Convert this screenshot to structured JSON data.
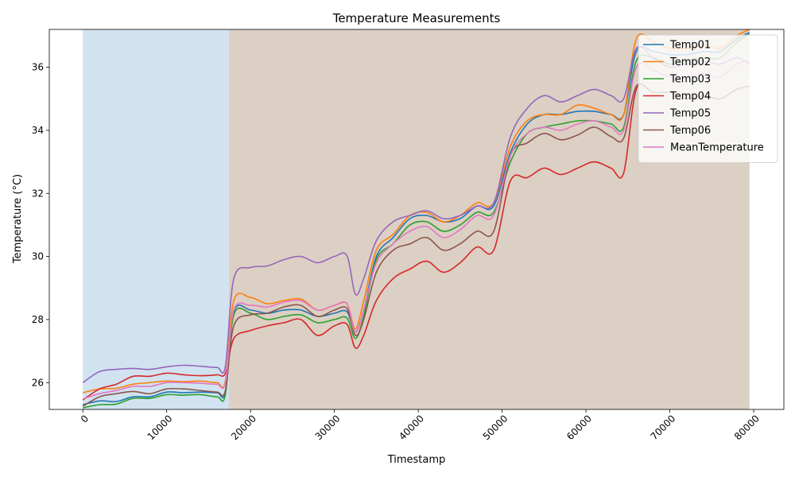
{
  "chart_data": {
    "type": "line",
    "title": "Temperature Measurements",
    "xlabel": "Timestamp",
    "ylabel": "Temperature (°C)",
    "xlim": [
      -4000,
      83600
    ],
    "ylim": [
      25.15,
      37.2
    ],
    "x_ticks": [
      0,
      10000,
      20000,
      30000,
      40000,
      50000,
      60000,
      70000,
      80000
    ],
    "y_ticks": [
      26,
      28,
      30,
      32,
      34,
      36
    ],
    "x": [
      0,
      2000,
      4000,
      6000,
      8000,
      10000,
      12000,
      14000,
      16000,
      17000,
      18000,
      20000,
      22000,
      24000,
      26000,
      28000,
      30000,
      31500,
      32500,
      33500,
      35000,
      37000,
      39000,
      41000,
      43000,
      45000,
      47000,
      49000,
      51000,
      53000,
      55000,
      57000,
      59000,
      61000,
      63000,
      64500,
      66000,
      68000,
      70000,
      72000,
      74000,
      76000,
      78000,
      79500
    ],
    "shaded_regions": [
      {
        "from": 0,
        "to": 17400,
        "color": "#d1e3f0"
      },
      {
        "from": 17400,
        "to": 79500,
        "color": "#dccfc4"
      }
    ],
    "series": [
      {
        "name": "Temp01",
        "color": "#1f77b4",
        "values": [
          25.3,
          25.42,
          25.4,
          25.55,
          25.55,
          25.7,
          25.68,
          25.7,
          25.68,
          25.72,
          28.25,
          28.3,
          28.2,
          28.3,
          28.3,
          28.1,
          28.2,
          28.25,
          27.6,
          28.3,
          30.0,
          30.6,
          31.2,
          31.3,
          31.1,
          31.2,
          31.6,
          31.6,
          33.3,
          34.2,
          34.5,
          34.5,
          34.6,
          34.6,
          34.5,
          34.5,
          36.5,
          36.5,
          36.4,
          36.4,
          36.5,
          36.5,
          36.9,
          37.1
        ]
      },
      {
        "name": "Temp02",
        "color": "#ff7f0e",
        "values": [
          25.68,
          25.8,
          25.82,
          25.95,
          26.0,
          26.05,
          26.03,
          26.05,
          26.0,
          26.05,
          28.6,
          28.7,
          28.5,
          28.6,
          28.65,
          28.3,
          28.45,
          28.5,
          27.7,
          28.6,
          30.2,
          30.7,
          31.3,
          31.4,
          31.1,
          31.3,
          31.7,
          31.7,
          33.5,
          34.3,
          34.5,
          34.5,
          34.8,
          34.7,
          34.5,
          34.5,
          36.9,
          36.8,
          36.6,
          36.6,
          36.7,
          36.6,
          37.0,
          37.2
        ]
      },
      {
        "name": "Temp03",
        "color": "#2ca02c",
        "values": [
          25.2,
          25.3,
          25.32,
          25.5,
          25.5,
          25.62,
          25.6,
          25.62,
          25.55,
          25.62,
          28.15,
          28.2,
          28.0,
          28.1,
          28.15,
          27.9,
          28.0,
          28.05,
          27.4,
          28.1,
          29.9,
          30.4,
          31.0,
          31.1,
          30.8,
          31.0,
          31.4,
          31.4,
          33.0,
          33.9,
          34.1,
          34.2,
          34.3,
          34.3,
          34.2,
          34.1,
          36.2,
          36.3,
          36.1,
          36.2,
          36.3,
          36.3,
          36.8,
          37.05
        ]
      },
      {
        "name": "Temp04",
        "color": "#d62728",
        "values": [
          25.45,
          25.8,
          25.95,
          26.2,
          26.2,
          26.3,
          26.25,
          26.22,
          26.25,
          26.3,
          27.4,
          27.65,
          27.8,
          27.9,
          28.0,
          27.5,
          27.8,
          27.85,
          27.1,
          27.5,
          28.6,
          29.3,
          29.6,
          29.85,
          29.5,
          29.8,
          30.3,
          30.2,
          32.4,
          32.5,
          32.8,
          32.6,
          32.8,
          33.0,
          32.8,
          32.65,
          35.3,
          35.2,
          35.2,
          35.0,
          35.1,
          35.0,
          35.3,
          35.4
        ]
      },
      {
        "name": "Temp05",
        "color": "#9467bd",
        "values": [
          26.0,
          26.35,
          26.42,
          26.45,
          26.42,
          26.5,
          26.55,
          26.52,
          26.48,
          26.52,
          29.3,
          29.65,
          29.7,
          29.9,
          30.0,
          29.8,
          30.0,
          30.02,
          28.8,
          29.3,
          30.5,
          31.1,
          31.3,
          31.45,
          31.2,
          31.3,
          31.6,
          31.7,
          33.8,
          34.7,
          35.1,
          34.9,
          35.1,
          35.3,
          35.1,
          35.0,
          36.6,
          36.3,
          36.0,
          36.1,
          36.2,
          36.1,
          36.3,
          36.1
        ]
      },
      {
        "name": "Temp06",
        "color": "#8c564b",
        "values": [
          25.25,
          25.55,
          25.65,
          25.72,
          25.65,
          25.8,
          25.8,
          25.75,
          25.7,
          25.75,
          27.8,
          28.15,
          28.2,
          28.4,
          28.45,
          28.1,
          28.3,
          28.35,
          27.5,
          28.0,
          29.5,
          30.2,
          30.4,
          30.6,
          30.2,
          30.4,
          30.8,
          30.8,
          33.2,
          33.6,
          33.9,
          33.7,
          33.85,
          34.1,
          33.8,
          33.75,
          35.4,
          35.2,
          35.2,
          35.0,
          35.1,
          35.0,
          35.3,
          35.4
        ]
      },
      {
        "name": "MeanTemperature",
        "color": "#e377c2",
        "values": [
          25.48,
          25.65,
          25.75,
          25.88,
          25.88,
          26.0,
          26.0,
          25.98,
          25.95,
          26.0,
          28.3,
          28.45,
          28.4,
          28.55,
          28.6,
          28.3,
          28.45,
          28.5,
          27.6,
          28.3,
          29.8,
          30.4,
          30.8,
          30.95,
          30.6,
          30.85,
          31.3,
          31.3,
          33.2,
          33.9,
          34.1,
          34.0,
          34.2,
          34.3,
          34.1,
          34.0,
          36.0,
          35.9,
          35.7,
          35.7,
          35.8,
          35.7,
          36.1,
          36.2
        ]
      }
    ],
    "legend": "top-right",
    "grid": false
  }
}
